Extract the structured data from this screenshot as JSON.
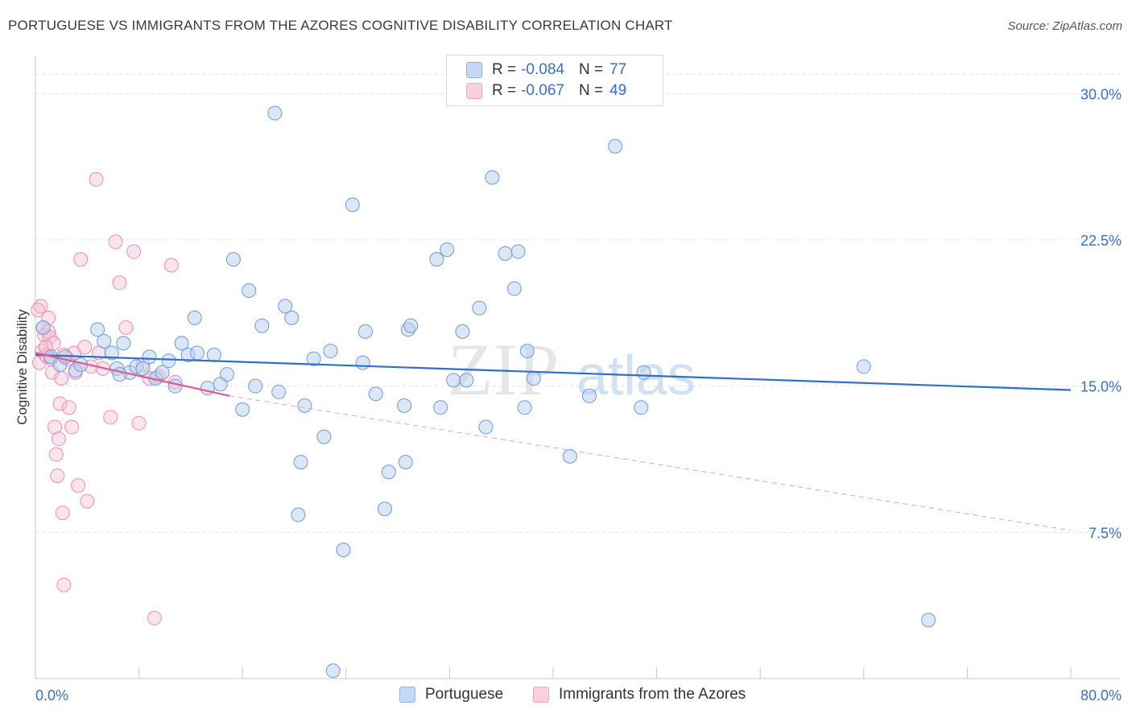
{
  "title": "PORTUGUESE VS IMMIGRANTS FROM THE AZORES COGNITIVE DISABILITY CORRELATION CHART",
  "source": "Source: ZipAtlas.com",
  "watermark": {
    "zip": "ZIP",
    "atlas": "atlas"
  },
  "legend_top": [
    {
      "r_label": "R =",
      "r_value": "-0.084",
      "n_label": "N =",
      "n_value": "77"
    },
    {
      "r_label": "R =",
      "r_value": "-0.067",
      "n_label": "N =",
      "n_value": "49"
    }
  ],
  "chart_data": {
    "type": "scatter",
    "title": "PORTUGUESE VS IMMIGRANTS FROM THE AZORES COGNITIVE DISABILITY CORRELATION CHART",
    "xlabel": "",
    "ylabel": "Cognitive Disability",
    "xlim": [
      0,
      80
    ],
    "ylim": [
      0,
      31.5
    ],
    "x_tick_labels": [
      "0.0%",
      "80.0%"
    ],
    "y_ticks": [
      7.5,
      15.0,
      22.5,
      30.0
    ],
    "y_tick_labels": [
      "7.5%",
      "15.0%",
      "22.5%",
      "30.0%"
    ],
    "grid": true,
    "legend_placement": "bottom",
    "series": [
      {
        "name": "Portuguese",
        "color": "#8fb3e8",
        "trend_color": "#2f6fcc",
        "trend": {
          "x": [
            0,
            80
          ],
          "y": [
            16.6,
            14.8
          ]
        },
        "points": [
          [
            0.6,
            18.0
          ],
          [
            1.2,
            16.5
          ],
          [
            1.9,
            16.1
          ],
          [
            2.3,
            16.5
          ],
          [
            3.1,
            15.8
          ],
          [
            3.5,
            16.1
          ],
          [
            4.8,
            17.9
          ],
          [
            5.3,
            17.3
          ],
          [
            5.9,
            16.7
          ],
          [
            6.3,
            15.9
          ],
          [
            6.8,
            17.2
          ],
          [
            7.3,
            15.7
          ],
          [
            7.8,
            16.0
          ],
          [
            8.3,
            15.9
          ],
          [
            8.8,
            16.5
          ],
          [
            9.3,
            15.4
          ],
          [
            9.8,
            15.7
          ],
          [
            10.3,
            16.3
          ],
          [
            10.8,
            15.0
          ],
          [
            11.3,
            17.2
          ],
          [
            11.8,
            16.6
          ],
          [
            12.3,
            18.5
          ],
          [
            13.3,
            14.9
          ],
          [
            13.8,
            16.6
          ],
          [
            14.3,
            15.1
          ],
          [
            14.8,
            15.6
          ],
          [
            15.3,
            21.5
          ],
          [
            16.0,
            13.8
          ],
          [
            16.5,
            19.9
          ],
          [
            17.0,
            15.0
          ],
          [
            17.5,
            18.1
          ],
          [
            18.5,
            29.0
          ],
          [
            18.8,
            14.7
          ],
          [
            19.3,
            19.1
          ],
          [
            19.8,
            18.5
          ],
          [
            20.3,
            8.4
          ],
          [
            20.5,
            11.1
          ],
          [
            20.8,
            14.0
          ],
          [
            21.5,
            16.4
          ],
          [
            22.3,
            12.4
          ],
          [
            22.8,
            16.8
          ],
          [
            23.0,
            0.4
          ],
          [
            23.8,
            6.6
          ],
          [
            24.5,
            24.3
          ],
          [
            25.3,
            16.2
          ],
          [
            25.5,
            17.8
          ],
          [
            26.3,
            14.6
          ],
          [
            27.0,
            8.7
          ],
          [
            27.3,
            10.6
          ],
          [
            28.6,
            11.1
          ],
          [
            28.8,
            17.9
          ],
          [
            29.0,
            18.1
          ],
          [
            31.0,
            21.5
          ],
          [
            31.3,
            13.9
          ],
          [
            31.8,
            22.0
          ],
          [
            32.3,
            15.3
          ],
          [
            33.0,
            17.8
          ],
          [
            33.3,
            15.3
          ],
          [
            34.3,
            19.0
          ],
          [
            34.8,
            12.9
          ],
          [
            35.3,
            25.7
          ],
          [
            36.3,
            21.8
          ],
          [
            37.0,
            20.0
          ],
          [
            37.3,
            21.9
          ],
          [
            37.8,
            13.9
          ],
          [
            38.0,
            16.8
          ],
          [
            38.5,
            15.4
          ],
          [
            41.3,
            11.4
          ],
          [
            42.8,
            14.5
          ],
          [
            44.8,
            27.3
          ],
          [
            46.8,
            13.9
          ],
          [
            47.0,
            15.7
          ],
          [
            64.0,
            16.0
          ],
          [
            69.0,
            3.0
          ],
          [
            6.5,
            15.6
          ],
          [
            12.5,
            16.7
          ],
          [
            28.5,
            14.0
          ]
        ]
      },
      {
        "name": "Immigrants from the Azores",
        "color": "#f4a6c0",
        "trend_color": "#e05a8a",
        "trend": {
          "x": [
            0,
            15
          ],
          "y": [
            16.7,
            14.5
          ]
        },
        "trend_extension": {
          "x": [
            15,
            80
          ],
          "y": [
            14.5,
            7.6
          ]
        },
        "points": [
          [
            0.3,
            16.2
          ],
          [
            0.4,
            19.1
          ],
          [
            0.5,
            16.8
          ],
          [
            0.6,
            18.0
          ],
          [
            0.7,
            17.6
          ],
          [
            0.8,
            16.6
          ],
          [
            0.9,
            16.5
          ],
          [
            1.0,
            17.8
          ],
          [
            1.1,
            17.5
          ],
          [
            1.2,
            16.4
          ],
          [
            1.3,
            15.7
          ],
          [
            1.4,
            17.2
          ],
          [
            1.5,
            12.9
          ],
          [
            1.6,
            11.5
          ],
          [
            1.7,
            10.4
          ],
          [
            1.8,
            12.3
          ],
          [
            1.9,
            14.1
          ],
          [
            2.0,
            15.4
          ],
          [
            2.1,
            8.5
          ],
          [
            2.2,
            4.8
          ],
          [
            2.5,
            16.4
          ],
          [
            2.6,
            13.9
          ],
          [
            2.8,
            12.9
          ],
          [
            3.0,
            16.7
          ],
          [
            3.1,
            15.7
          ],
          [
            3.3,
            9.9
          ],
          [
            3.5,
            21.5
          ],
          [
            3.8,
            17.0
          ],
          [
            4.0,
            9.1
          ],
          [
            4.3,
            16.0
          ],
          [
            4.7,
            25.6
          ],
          [
            4.9,
            16.7
          ],
          [
            5.2,
            15.9
          ],
          [
            5.8,
            13.4
          ],
          [
            6.2,
            22.4
          ],
          [
            6.5,
            20.3
          ],
          [
            7.0,
            18.0
          ],
          [
            7.6,
            21.9
          ],
          [
            8.0,
            13.1
          ],
          [
            8.3,
            16.1
          ],
          [
            8.8,
            15.4
          ],
          [
            9.2,
            3.1
          ],
          [
            10.5,
            21.2
          ],
          [
            10.8,
            15.2
          ],
          [
            9.5,
            15.5
          ],
          [
            0.2,
            18.9
          ],
          [
            1.0,
            18.5
          ],
          [
            0.8,
            17.0
          ],
          [
            2.2,
            16.6
          ]
        ]
      }
    ]
  }
}
